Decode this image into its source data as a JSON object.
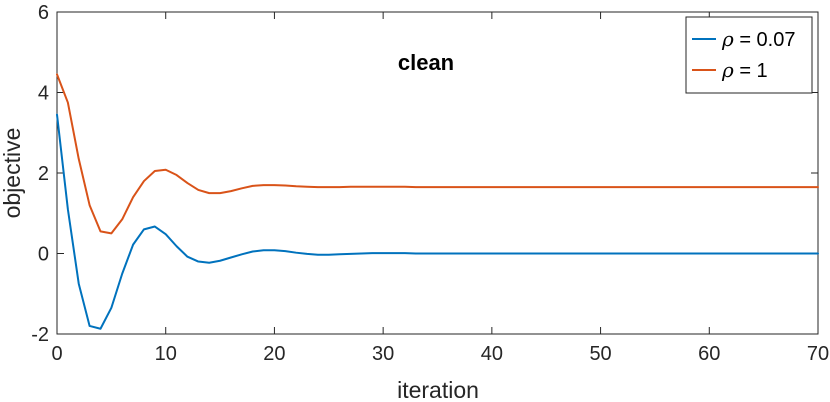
{
  "chart_data": {
    "type": "line",
    "annotation": "clean",
    "xlabel": "iteration",
    "ylabel": "objective",
    "xlim": [
      0,
      70
    ],
    "ylim": [
      -2,
      6
    ],
    "xticks": [
      0,
      10,
      20,
      30,
      40,
      50,
      60,
      70
    ],
    "yticks": [
      -2,
      0,
      2,
      4,
      6
    ],
    "grid": false,
    "legend_position": "top-right",
    "series": [
      {
        "symbol": "ρ",
        "value_text": " = 0.07",
        "color": "#0072bd",
        "x": [
          0,
          1,
          2,
          3,
          4,
          5,
          6,
          7,
          8,
          9,
          10,
          11,
          12,
          13,
          14,
          15,
          16,
          17,
          18,
          19,
          20,
          21,
          22,
          23,
          24,
          25,
          26,
          27,
          28,
          29,
          30,
          31,
          32,
          33,
          34,
          35,
          36,
          37,
          38,
          39,
          40,
          41,
          42,
          43,
          44,
          45,
          46,
          47,
          48,
          49,
          50,
          51,
          52,
          53,
          54,
          55,
          56,
          57,
          58,
          59,
          60,
          61,
          62,
          63,
          64,
          65,
          66,
          67,
          68,
          69,
          70
        ],
        "y": [
          3.45,
          1.1,
          -0.75,
          -1.8,
          -1.87,
          -1.35,
          -0.5,
          0.22,
          0.6,
          0.67,
          0.48,
          0.18,
          -0.08,
          -0.2,
          -0.23,
          -0.18,
          -0.1,
          -0.02,
          0.05,
          0.08,
          0.08,
          0.06,
          0.02,
          -0.01,
          -0.03,
          -0.03,
          -0.02,
          -0.01,
          0.0,
          0.01,
          0.01,
          0.01,
          0.01,
          0.0,
          0.0,
          0.0,
          0.0,
          0.0,
          0.0,
          0.0,
          0.0,
          0.0,
          0.0,
          0.0,
          0.0,
          0.0,
          0.0,
          0.0,
          0.0,
          0.0,
          0.0,
          0.0,
          0.0,
          0.0,
          0.0,
          0.0,
          0.0,
          0.0,
          0.0,
          0.0,
          0.0,
          0.0,
          0.0,
          0.0,
          0.0,
          0.0,
          0.0,
          0.0,
          0.0,
          0.0,
          0.0
        ]
      },
      {
        "symbol": "ρ",
        "value_text": " = 1",
        "color": "#d95319",
        "x": [
          0,
          1,
          2,
          3,
          4,
          5,
          6,
          7,
          8,
          9,
          10,
          11,
          12,
          13,
          14,
          15,
          16,
          17,
          18,
          19,
          20,
          21,
          22,
          23,
          24,
          25,
          26,
          27,
          28,
          29,
          30,
          31,
          32,
          33,
          34,
          35,
          36,
          37,
          38,
          39,
          40,
          41,
          42,
          43,
          44,
          45,
          46,
          47,
          48,
          49,
          50,
          51,
          52,
          53,
          54,
          55,
          56,
          57,
          58,
          59,
          60,
          61,
          62,
          63,
          64,
          65,
          66,
          67,
          68,
          69,
          70
        ],
        "y": [
          4.45,
          3.75,
          2.35,
          1.2,
          0.55,
          0.5,
          0.85,
          1.4,
          1.8,
          2.05,
          2.08,
          1.95,
          1.75,
          1.58,
          1.5,
          1.5,
          1.55,
          1.62,
          1.68,
          1.7,
          1.7,
          1.69,
          1.67,
          1.66,
          1.65,
          1.65,
          1.65,
          1.66,
          1.66,
          1.66,
          1.66,
          1.66,
          1.66,
          1.65,
          1.65,
          1.65,
          1.65,
          1.65,
          1.65,
          1.65,
          1.65,
          1.65,
          1.65,
          1.65,
          1.65,
          1.65,
          1.65,
          1.65,
          1.65,
          1.65,
          1.65,
          1.65,
          1.65,
          1.65,
          1.65,
          1.65,
          1.65,
          1.65,
          1.65,
          1.65,
          1.65,
          1.65,
          1.65,
          1.65,
          1.65,
          1.65,
          1.65,
          1.65,
          1.65,
          1.65,
          1.65
        ]
      }
    ]
  }
}
